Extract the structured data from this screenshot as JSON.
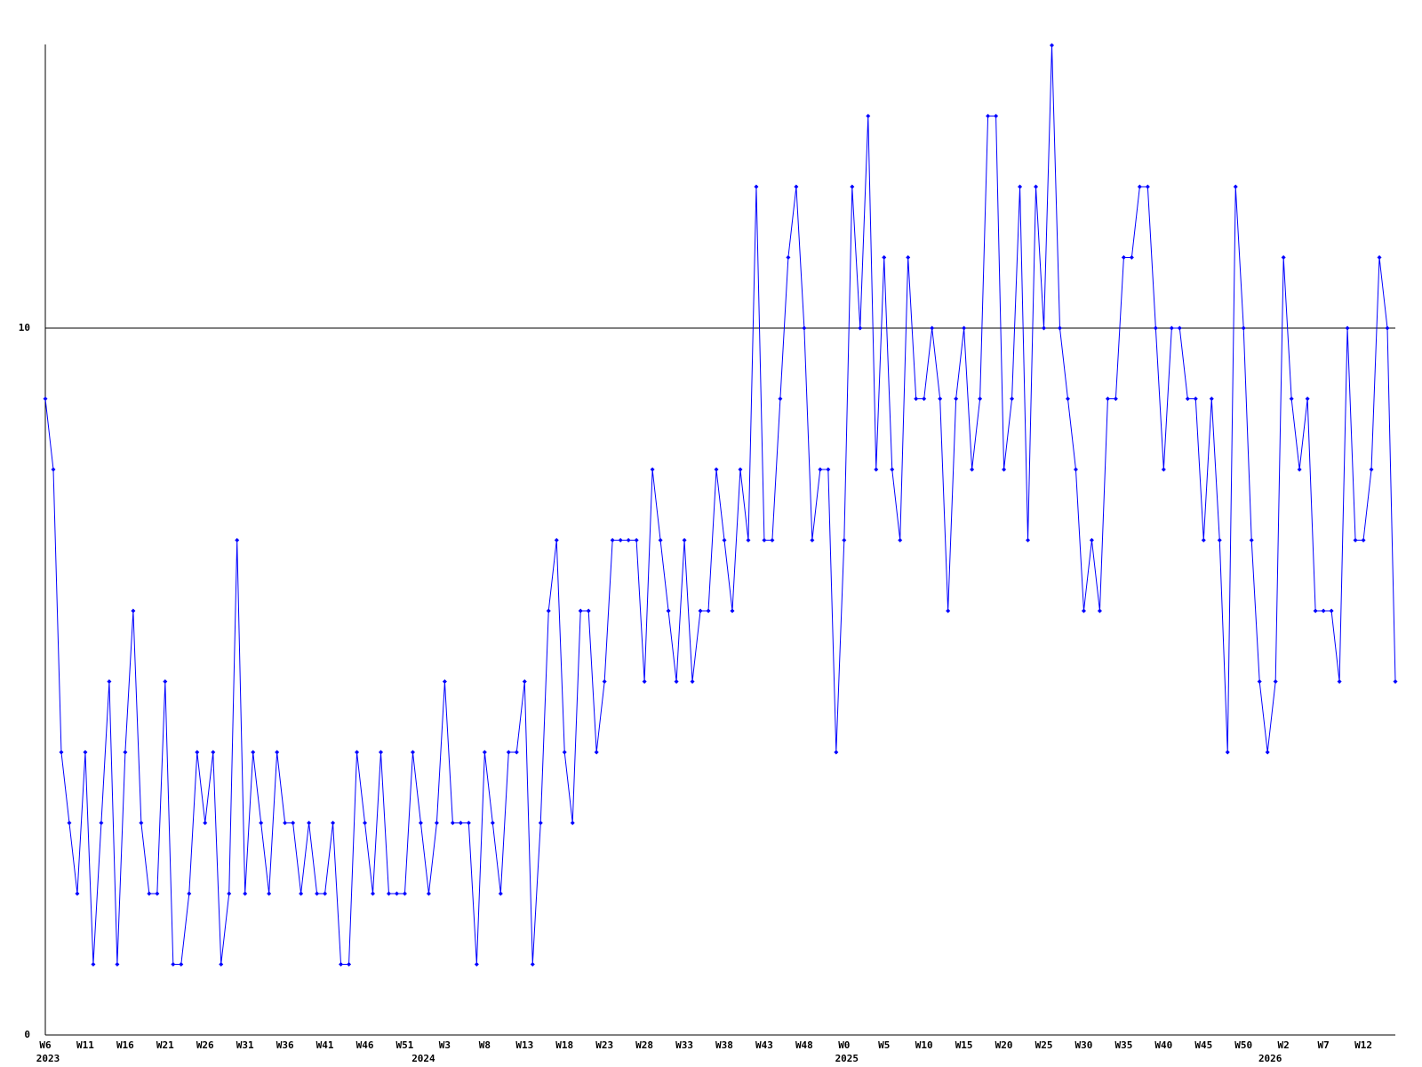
{
  "chart_data": {
    "type": "line",
    "color": "#0000ff",
    "grid": true,
    "ylim": [
      0,
      14
    ],
    "yticks": [
      0,
      10
    ],
    "categories": [
      "W6",
      null,
      null,
      null,
      null,
      "W11",
      null,
      null,
      null,
      null,
      "W16",
      null,
      null,
      null,
      null,
      "W21",
      null,
      null,
      null,
      null,
      "W26",
      null,
      null,
      null,
      null,
      "W31",
      null,
      null,
      null,
      null,
      "W36",
      null,
      null,
      null,
      null,
      "W41",
      null,
      null,
      null,
      null,
      "W46",
      null,
      null,
      null,
      null,
      "W51",
      null,
      null,
      null,
      null,
      "W3",
      null,
      null,
      null,
      null,
      "W8",
      null,
      null,
      null,
      null,
      "W13",
      null,
      null,
      null,
      null,
      "W18",
      null,
      null,
      null,
      null,
      "W23",
      null,
      null,
      null,
      null,
      "W28",
      null,
      null,
      null,
      null,
      "W33",
      null,
      null,
      null,
      null,
      "W38",
      null,
      null,
      null,
      null,
      "W43",
      null,
      null,
      null,
      null,
      "W48",
      null,
      null,
      null,
      null,
      "W0",
      null,
      null,
      null,
      null,
      "W5",
      null,
      null,
      null,
      null,
      "W10",
      null,
      null,
      null,
      null,
      "W15",
      null,
      null,
      null,
      null,
      "W20",
      null,
      null,
      null,
      null,
      "W25",
      null,
      null,
      null,
      null,
      "W30",
      null,
      null,
      null,
      null,
      "W35",
      null,
      null,
      null,
      null,
      "W40",
      null,
      null,
      null,
      null,
      "W45",
      null,
      null,
      null,
      null,
      "W50",
      null,
      null,
      null,
      null,
      "W2",
      null,
      null,
      null,
      null,
      "W7",
      null,
      null,
      null,
      null,
      "W12",
      null,
      null,
      null,
      null
    ],
    "year_labels": [
      "2023",
      null,
      null,
      null,
      null,
      null,
      null,
      null,
      null,
      null,
      null,
      null,
      null,
      null,
      null,
      null,
      null,
      null,
      null,
      null,
      null,
      null,
      null,
      null,
      null,
      null,
      null,
      null,
      null,
      null,
      null,
      null,
      null,
      null,
      null,
      null,
      null,
      null,
      null,
      null,
      null,
      null,
      null,
      null,
      null,
      null,
      null,
      "2024",
      null,
      null,
      null,
      null,
      null,
      null,
      null,
      null,
      null,
      null,
      null,
      null,
      null,
      null,
      null,
      null,
      null,
      null,
      null,
      null,
      null,
      null,
      null,
      null,
      null,
      null,
      null,
      null,
      null,
      null,
      null,
      null,
      null,
      null,
      null,
      null,
      null,
      null,
      null,
      null,
      null,
      null,
      null,
      null,
      null,
      null,
      null,
      null,
      null,
      null,
      null,
      null,
      "2025",
      null,
      null,
      null,
      null,
      null,
      null,
      null,
      null,
      null,
      null,
      null,
      null,
      null,
      null,
      null,
      null,
      null,
      null,
      null,
      null,
      null,
      null,
      null,
      null,
      null,
      null,
      null,
      null,
      null,
      null,
      null,
      null,
      null,
      null,
      null,
      null,
      null,
      null,
      null,
      null,
      null,
      null,
      null,
      null,
      null,
      null,
      null,
      null,
      null,
      null,
      null,
      null,
      "2026",
      null,
      null,
      null,
      null,
      null,
      null,
      null,
      null,
      null,
      null,
      null,
      null,
      null,
      null,
      null,
      null
    ],
    "values": [
      9,
      8,
      4,
      3,
      2,
      4,
      1,
      3,
      5,
      1,
      4,
      6,
      3,
      2,
      2,
      5,
      1,
      1,
      2,
      4,
      3,
      4,
      1,
      2,
      7,
      2,
      4,
      3,
      2,
      4,
      3,
      3,
      2,
      3,
      2,
      2,
      3,
      1,
      1,
      4,
      3,
      2,
      4,
      2,
      2,
      2,
      4,
      3,
      2,
      3,
      5,
      3,
      3,
      3,
      1,
      4,
      3,
      2,
      4,
      4,
      5,
      1,
      3,
      6,
      7,
      4,
      3,
      6,
      6,
      4,
      5,
      7,
      7,
      7,
      7,
      5,
      8,
      7,
      6,
      5,
      7,
      5,
      6,
      6,
      8,
      7,
      6,
      8,
      7,
      12,
      7,
      7,
      9,
      11,
      12,
      10,
      7,
      8,
      8,
      4,
      7,
      12,
      10,
      13,
      8,
      11,
      8,
      7,
      11,
      9,
      9,
      10,
      9,
      6,
      9,
      10,
      8,
      9,
      13,
      13,
      8,
      9,
      12,
      7,
      12,
      10,
      14,
      10,
      9,
      8,
      6,
      7,
      6,
      9,
      9,
      11,
      11,
      12,
      12,
      10,
      8,
      10,
      10,
      9,
      9,
      7,
      9,
      7,
      4,
      12,
      10,
      7,
      5,
      4,
      5,
      11,
      9,
      8,
      9,
      6,
      6,
      6,
      5,
      10,
      7,
      7,
      8,
      11,
      10,
      5
    ]
  }
}
